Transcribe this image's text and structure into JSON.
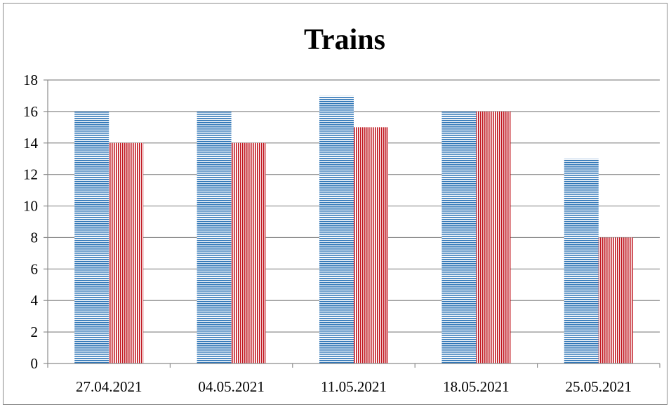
{
  "chart_data": {
    "type": "bar",
    "title": "Trains",
    "categories": [
      "27.04.2021",
      "04.05.2021",
      "11.05.2021",
      "18.05.2021",
      "25.05.2021"
    ],
    "series": [
      {
        "values": [
          16,
          16,
          17,
          16,
          13
        ],
        "color": "#2E75B6",
        "pattern": "horizontal-lines"
      },
      {
        "values": [
          14,
          14,
          15,
          16,
          8
        ],
        "color": "#C0161F",
        "pattern": "vertical-lines"
      }
    ],
    "ylim": [
      0,
      18
    ],
    "yticks": [
      0,
      2,
      4,
      6,
      8,
      10,
      12,
      14,
      16,
      18
    ],
    "grid": true,
    "legend": "none"
  }
}
